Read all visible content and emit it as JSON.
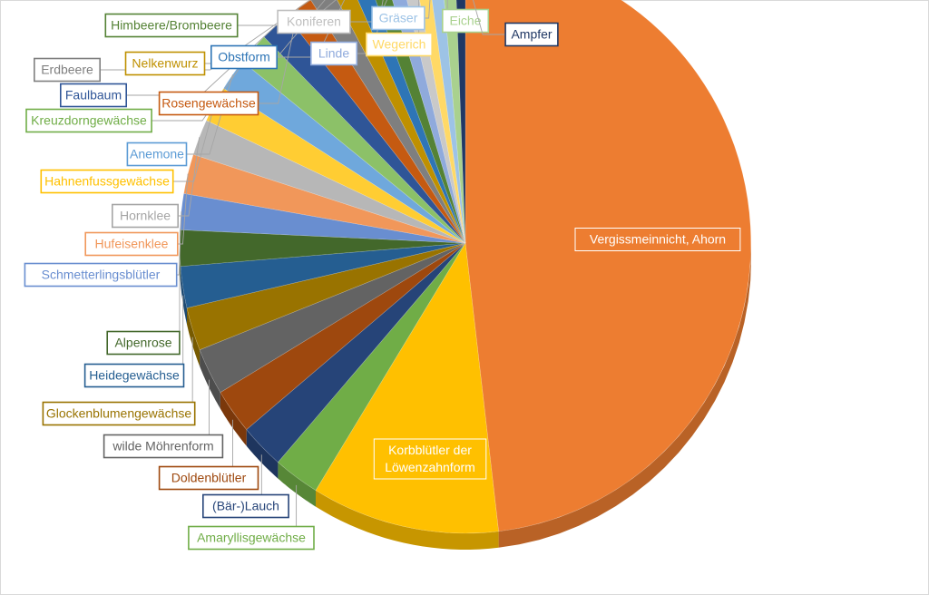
{
  "chart_data": {
    "type": "pie",
    "style": "3d-exploded-none",
    "title": "",
    "slices": [
      {
        "label": "Vergissmeinnicht, Ahorn",
        "value": 48.0,
        "color": "#ED7D31",
        "label_color": "#ffffff",
        "label_fill": "#ED7D31"
      },
      {
        "label": "Korbblütler der Löwenzahnform",
        "value": 10.6,
        "color": "#FFC000",
        "label_color": "#ffffff",
        "label_fill": "#FFC000"
      },
      {
        "label": "Amaryllisgewächse",
        "value": 2.6,
        "color": "#70AD47",
        "label_color": "#70AD47"
      },
      {
        "label": "(Bär-)Lauch",
        "value": 2.5,
        "color": "#264478",
        "label_color": "#264478"
      },
      {
        "label": "Doldenblütler",
        "value": 2.5,
        "color": "#9E480E",
        "label_color": "#9E480E"
      },
      {
        "label": "wilde Möhrenform",
        "value": 2.6,
        "color": "#636363",
        "label_color": "#636363"
      },
      {
        "label": "Glockenblumengewächse",
        "value": 2.4,
        "color": "#997300",
        "label_color": "#997300"
      },
      {
        "label": "Heidegewächse",
        "value": 2.3,
        "color": "#255E91",
        "label_color": "#255E91"
      },
      {
        "label": "Alpenrose",
        "value": 2.0,
        "color": "#43682B",
        "label_color": "#43682B"
      },
      {
        "label": "Schmetterlingsblütler",
        "value": 2.0,
        "color": "#698ED0",
        "label_color": "#698ED0"
      },
      {
        "label": "Hufeisenklee",
        "value": 2.2,
        "color": "#F1975A",
        "label_color": "#F1975A"
      },
      {
        "label": "Hornklee",
        "value": 2.0,
        "color": "#B7B7B7",
        "label_color": "#A5A5A5"
      },
      {
        "label": "Hahnenfussgewächse",
        "value": 2.0,
        "color": "#FFCD33",
        "label_color": "#FFC000"
      },
      {
        "label": "Anemone",
        "value": 1.8,
        "color": "#6FA8DC",
        "label_color": "#5B9BD5"
      },
      {
        "label": "Kreuzdorngewächse",
        "value": 1.8,
        "color": "#8CC168",
        "label_color": "#70AD47"
      },
      {
        "label": "Faulbaum",
        "value": 1.7,
        "color": "#2F5597",
        "label_color": "#2F5597"
      },
      {
        "label": "Rosengewächse",
        "value": 1.6,
        "color": "#C55A11",
        "label_color": "#C55A11"
      },
      {
        "label": "Erdbeere",
        "value": 1.3,
        "color": "#7F7F7F",
        "label_color": "#7F7F7F"
      },
      {
        "label": "Nelkenwurz",
        "value": 1.1,
        "color": "#BF9000",
        "label_color": "#BF9000"
      },
      {
        "label": "Obstform",
        "value": 1.0,
        "color": "#2E75B6",
        "label_color": "#2E75B6"
      },
      {
        "label": "Himbeere/Brombeere",
        "value": 1.0,
        "color": "#548235",
        "label_color": "#548235"
      },
      {
        "label": "Linde",
        "value": 0.9,
        "color": "#8FAADC",
        "label_color": "#8FAADC"
      },
      {
        "label": "Koniferen",
        "value": 0.8,
        "color": "#C9C9C9",
        "label_color": "#BFBFBF"
      },
      {
        "label": "Wegerich",
        "value": 0.8,
        "color": "#FFD966",
        "label_color": "#FFD966"
      },
      {
        "label": "Gräser",
        "value": 0.8,
        "color": "#9DC3E6",
        "label_color": "#9DC3E6"
      },
      {
        "label": "Eiche",
        "value": 0.8,
        "color": "#A9D18E",
        "label_color": "#A9D18E"
      },
      {
        "label": "Ampfer",
        "value": 0.6,
        "color": "#203864",
        "label_color": "#203864"
      }
    ]
  }
}
